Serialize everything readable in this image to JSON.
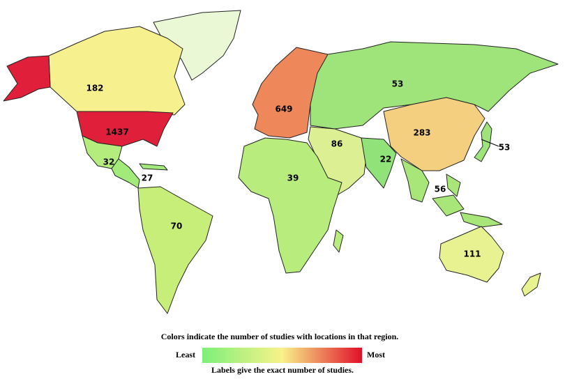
{
  "regions": [
    {
      "value": 182,
      "color": "#f7f08f"
    },
    {
      "value": 1437,
      "color": "#e0203a"
    },
    {
      "value": 32,
      "color": "#b4ec7e"
    },
    {
      "value": 27,
      "color": "#a2ea7a"
    },
    {
      "value": 70,
      "color": "#c6ee78"
    },
    {
      "value": 649,
      "color": "#ee875a"
    },
    {
      "value": 53,
      "color": "#9ee47a"
    },
    {
      "value": 283,
      "color": "#f5cf80"
    },
    {
      "value": 53,
      "color": "#9ee47a"
    },
    {
      "value": 86,
      "color": "#dcef92"
    },
    {
      "value": 22,
      "color": "#92e27a"
    },
    {
      "value": 56,
      "color": "#a8e67a"
    },
    {
      "value": 39,
      "color": "#b8ec7c"
    },
    {
      "value": 111,
      "color": "#e9f290"
    }
  ],
  "legend": {
    "caption": "Colors indicate the number of studies with locations in that region.",
    "least": "Least",
    "most": "Most",
    "note": "Labels give the exact number of studies.",
    "gradient": [
      "#7df07a",
      "#f8f28a",
      "#e0102a"
    ]
  }
}
